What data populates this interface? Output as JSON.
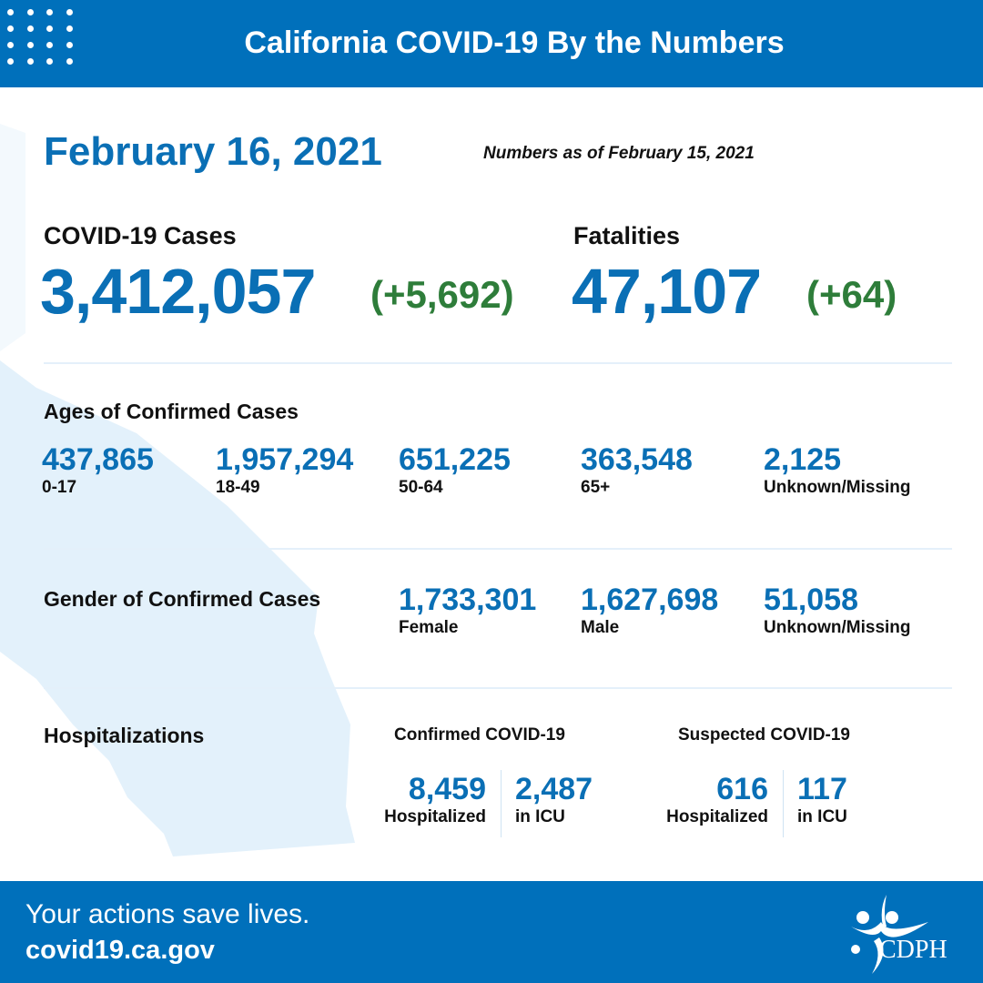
{
  "header": {
    "title": "California COVID-19 By the Numbers"
  },
  "date": "February 16, 2021",
  "as_of": "Numbers as of February 15, 2021",
  "cases": {
    "label": "COVID-19 Cases",
    "value": "3,412,057",
    "change": "(+5,692)"
  },
  "fatalities": {
    "label": "Fatalities",
    "value": "47,107",
    "change": "(+64)"
  },
  "ages": {
    "label": "Ages of Confirmed Cases",
    "items": [
      {
        "value": "437,865",
        "label": "0-17"
      },
      {
        "value": "1,957,294",
        "label": "18-49"
      },
      {
        "value": "651,225",
        "label": "50-64"
      },
      {
        "value": "363,548",
        "label": "65+"
      },
      {
        "value": "2,125",
        "label": "Unknown/Missing"
      }
    ]
  },
  "gender": {
    "label": "Gender of Confirmed Cases",
    "items": [
      {
        "value": "1,733,301",
        "label": "Female"
      },
      {
        "value": "1,627,698",
        "label": "Male"
      },
      {
        "value": "51,058",
        "label": "Unknown/Missing"
      }
    ]
  },
  "hosp": {
    "label": "Hospitalizations",
    "confirmed": {
      "label": "Confirmed COVID-19",
      "hospitalized": "8,459",
      "hosp_label": "Hospitalized",
      "icu": "2,487",
      "icu_label": "in ICU"
    },
    "suspected": {
      "label": "Suspected COVID-19",
      "hospitalized": "616",
      "hosp_label": "Hospitalized",
      "icu": "117",
      "icu_label": "in ICU"
    }
  },
  "footer": {
    "tagline": "Your actions save lives.",
    "url": "covid19.ca.gov",
    "logo_text": "CDPH"
  },
  "colors": {
    "brand_blue": "#0070bb",
    "number_blue": "#0a6fb5",
    "change_green": "#2e7d3a",
    "map_fill": "#e3f1fb"
  }
}
